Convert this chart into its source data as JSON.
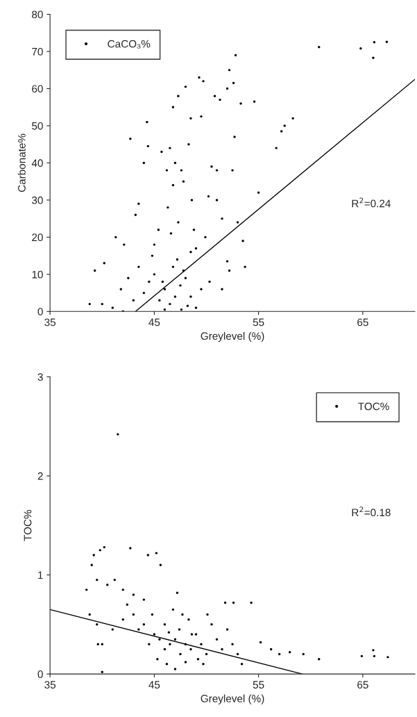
{
  "chart_data": [
    {
      "type": "scatter",
      "xlabel": "Greylevel (%)",
      "ylabel": "Carbonate%",
      "xlim": [
        35,
        70
      ],
      "xticks": [
        35,
        45,
        55,
        65
      ],
      "ylim": [
        0,
        80
      ],
      "yticks": [
        0,
        10,
        20,
        30,
        40,
        50,
        60,
        70,
        80
      ],
      "legend": "top left",
      "grid": false,
      "annotations": [
        "R$^{2}$=0.24"
      ],
      "series": [
        {
          "name": "CaCO₃%",
          "marker": "circle",
          "color": "#000000",
          "x": [
            60.8,
            64.8,
            66.1,
            67.3,
            66,
            52.2,
            52.8,
            49.3,
            49.7,
            50.8,
            51.3,
            52,
            52.6,
            53.3,
            54.6,
            57.2,
            57.5,
            58.3,
            56.7,
            55,
            44.3,
            44.4,
            42.7,
            48,
            47.3,
            46.8,
            48.5,
            49.5,
            48.3,
            46.5,
            45.7,
            47,
            46.2,
            47.6,
            48.6,
            46.8,
            47.8,
            46.3,
            45.4,
            43.2,
            43.5,
            42.1,
            41.3,
            40.2,
            39.3,
            38.8,
            40,
            41,
            42,
            43,
            44,
            44.5,
            45,
            45.5,
            46,
            46.5,
            47,
            47.5,
            48,
            48.5,
            49,
            49.5,
            46.8,
            47.2,
            44.8,
            45,
            49,
            50.5,
            51,
            52.5,
            52.7,
            53,
            53.5,
            52.2,
            51.5,
            50.2,
            48.8,
            46,
            47.6,
            48.2,
            45.8,
            47.8,
            50.3,
            51.5,
            43.5,
            42.5,
            41.8,
            46.6,
            47.3,
            48.5,
            44,
            49.9,
            51,
            53.7,
            52
          ],
          "values": [
            71.2,
            70.8,
            72.5,
            72.6,
            68.3,
            65,
            69,
            63,
            62,
            58,
            57,
            60,
            61.5,
            56,
            56.5,
            48.5,
            50,
            52,
            44,
            32,
            51,
            44.5,
            46.5,
            60.5,
            58,
            55,
            52,
            52.5,
            45,
            44,
            43,
            40,
            38,
            38,
            30,
            34,
            35,
            28,
            22,
            26,
            29,
            18,
            20,
            13,
            11,
            2,
            2,
            1,
            0,
            3,
            5,
            8,
            10,
            3,
            6,
            2,
            4,
            7,
            9,
            4,
            1,
            6,
            12,
            14,
            15,
            18,
            17,
            39,
            38,
            38,
            47,
            24,
            19,
            11,
            25,
            31,
            22,
            0.5,
            0.5,
            1.5,
            8,
            11,
            8,
            6,
            12,
            9,
            6,
            21,
            24,
            16,
            40,
            20,
            30,
            12,
            13.5
          ]
        },
        {
          "type": "line",
          "marker": "none",
          "color": "#000000",
          "x": [
            43.2,
            70
          ],
          "values": [
            0,
            62.5
          ]
        }
      ]
    },
    {
      "type": "scatter",
      "xlabel": "Greylevel (%)",
      "ylabel": "TOC%",
      "xlim": [
        35,
        70
      ],
      "xticks": [
        35,
        45,
        55,
        65
      ],
      "ylim": [
        0,
        3
      ],
      "yticks": [
        0,
        1,
        2,
        3
      ],
      "legend": "top right",
      "grid": false,
      "annotations": [
        "R$^{2}$=0.18"
      ],
      "series": [
        {
          "name": "TOC%",
          "marker": "circle",
          "color": "#000000",
          "x": [
            41.5,
            39,
            39.2,
            39.8,
            40.2,
            42.7,
            44.4,
            45.2,
            45.6,
            39.5,
            40.5,
            41.2,
            42,
            43,
            44,
            38.5,
            38.8,
            39.5,
            40,
            41,
            42,
            43,
            43.5,
            44,
            44.5,
            45,
            45.5,
            46,
            46.5,
            47,
            47.5,
            48,
            48.5,
            49,
            49.5,
            50,
            50.5,
            51,
            51.5,
            52,
            52.5,
            53,
            46,
            46.8,
            47.2,
            47.7,
            48.3,
            45.3,
            46.2,
            47,
            48,
            49.2,
            50.1,
            51.8,
            52.6,
            54.3,
            53.4,
            55.2,
            56.2,
            57,
            58,
            59.3,
            60.8,
            64.9,
            66,
            66.1,
            67.4,
            40,
            39.6,
            44.8,
            42.4,
            46.4,
            47.4,
            48.6,
            49.7
          ],
          "values": [
            2.42,
            1.1,
            1.2,
            1.25,
            1.28,
            1.27,
            1.2,
            1.22,
            1.1,
            0.95,
            0.9,
            0.95,
            0.85,
            0.8,
            0.75,
            0.85,
            0.6,
            0.5,
            0.3,
            0.45,
            0.55,
            0.6,
            0.45,
            0.5,
            0.3,
            0.4,
            0.35,
            0.25,
            0.3,
            0.35,
            0.2,
            0.3,
            0.25,
            0.4,
            0.3,
            0.2,
            0.5,
            0.35,
            0.25,
            0.45,
            0.3,
            0.2,
            0.5,
            0.65,
            0.82,
            0.6,
            0.55,
            0.15,
            0.1,
            0.05,
            0.12,
            0.15,
            0.6,
            0.72,
            0.72,
            0.72,
            0.1,
            0.32,
            0.25,
            0.2,
            0.22,
            0.2,
            0.15,
            0.18,
            0.24,
            0.18,
            0.17,
            0.02,
            0.3,
            0.6,
            0.7,
            0.42,
            0.45,
            0.4,
            0.1
          ]
        },
        {
          "type": "line",
          "marker": "none",
          "color": "#000000",
          "x": [
            35,
            59.2
          ],
          "values": [
            0.65,
            0
          ]
        }
      ]
    }
  ]
}
